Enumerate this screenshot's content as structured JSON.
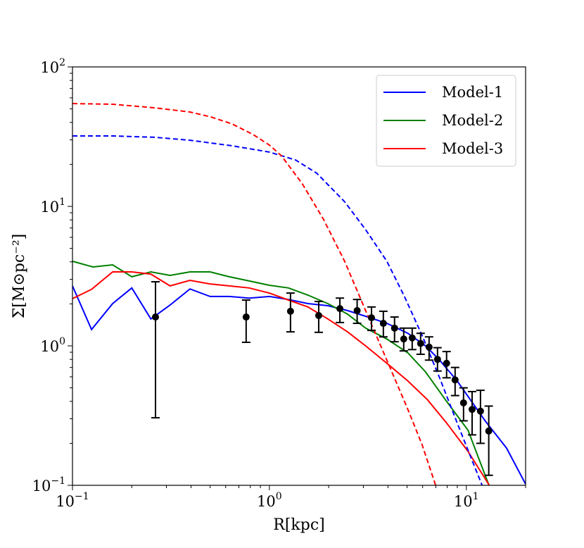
{
  "chart_data": {
    "type": "line",
    "xlabel": "R[kpc]",
    "ylabel": "Σ[M⊙pc⁻²]",
    "ylabel_parts": {
      "main": "Σ[M",
      "sub": "⊙",
      "mid": "pc",
      "sup": "−2",
      "end": "]"
    },
    "xscale": "log",
    "yscale": "log",
    "xlim": [
      0.1,
      20
    ],
    "ylim": [
      0.1,
      100
    ],
    "grid": false,
    "legend_placement": "top-right",
    "x_ticks": [
      {
        "value": 0.1,
        "base": "10",
        "exp": "−1"
      },
      {
        "value": 1,
        "base": "10",
        "exp": "0"
      },
      {
        "value": 10,
        "base": "10",
        "exp": "1"
      }
    ],
    "y_ticks": [
      {
        "value": 0.1,
        "base": "10",
        "exp": "−1"
      },
      {
        "value": 1,
        "base": "10",
        "exp": "0"
      },
      {
        "value": 10,
        "base": "10",
        "exp": "1"
      },
      {
        "value": 100,
        "base": "10",
        "exp": "2"
      }
    ],
    "series": [
      {
        "name": "Model-1",
        "color": "#0000ff",
        "style": "solid",
        "x": [
          0.1,
          0.125,
          0.16,
          0.2,
          0.25,
          0.313,
          0.395,
          0.5,
          0.625,
          0.79,
          1,
          1.25,
          1.57,
          1.98,
          2.49,
          3.08,
          3.95,
          5.05,
          6.21,
          7.32,
          8.99,
          12.5,
          16.0,
          20
        ],
        "y": [
          2.69,
          1.31,
          2.01,
          2.6,
          1.56,
          1.96,
          2.56,
          2.26,
          2.26,
          2.2,
          2.26,
          2.15,
          2.01,
          1.94,
          1.79,
          1.63,
          1.45,
          1.23,
          1.0,
          0.79,
          0.56,
          0.288,
          0.185,
          0.102
        ]
      },
      {
        "name": "Model-2",
        "color": "#008000",
        "style": "solid",
        "x": [
          0.1,
          0.127,
          0.16,
          0.2,
          0.25,
          0.313,
          0.395,
          0.5,
          0.625,
          0.79,
          1,
          1.25,
          1.57,
          1.98,
          2.49,
          3.08,
          3.95,
          5.05,
          6.21,
          7.94,
          10.2,
          13.1
        ],
        "y": [
          4.04,
          3.68,
          3.81,
          3.13,
          3.39,
          3.2,
          3.39,
          3.39,
          3.13,
          2.92,
          2.72,
          2.6,
          2.31,
          2.01,
          1.69,
          1.34,
          1.12,
          0.89,
          0.65,
          0.4,
          0.248,
          0.098
        ]
      },
      {
        "name": "Model-3",
        "color": "#ff0000",
        "style": "solid",
        "x": [
          0.1,
          0.125,
          0.16,
          0.2,
          0.25,
          0.313,
          0.395,
          0.5,
          0.625,
          0.79,
          1,
          1.25,
          1.57,
          1.98,
          2.49,
          3.08,
          3.95,
          5.05,
          6.36,
          7.94,
          10.2,
          13.2
        ],
        "y": [
          2.18,
          2.54,
          3.39,
          3.39,
          3.27,
          2.69,
          2.95,
          2.78,
          2.69,
          2.6,
          2.39,
          2.13,
          1.9,
          1.56,
          1.26,
          1.0,
          0.75,
          0.56,
          0.41,
          0.28,
          0.175,
          0.098
        ]
      },
      {
        "color": "#0000ff",
        "style": "dashed",
        "x": [
          0.1,
          0.16,
          0.262,
          0.395,
          0.647,
          1,
          1.36,
          1.74,
          2.41,
          3.08,
          3.95,
          4.85,
          5.96,
          7.32,
          8.99,
          10.6,
          12.1
        ],
        "y": [
          32.0,
          32.0,
          31.3,
          29.8,
          27.2,
          24.5,
          21.5,
          17.3,
          10.8,
          6.81,
          4.04,
          2.26,
          1.19,
          0.59,
          0.28,
          0.156,
          0.098
        ]
      },
      {
        "color": "#ff0000",
        "style": "dashed",
        "x": [
          0.1,
          0.16,
          0.262,
          0.395,
          0.505,
          0.647,
          0.828,
          1,
          1.15,
          1.47,
          1.88,
          2.41,
          3.08,
          3.95,
          5.05,
          5.96,
          7.02
        ],
        "y": [
          54.6,
          54.0,
          50.9,
          47.5,
          43.8,
          39.0,
          32.7,
          27.5,
          23.1,
          14.5,
          8.1,
          4.04,
          1.79,
          0.79,
          0.35,
          0.196,
          0.098
        ]
      }
    ],
    "observed": {
      "color": "#000000",
      "x": [
        0.264,
        0.762,
        1.28,
        1.78,
        2.28,
        2.79,
        3.3,
        3.79,
        4.32,
        4.81,
        5.31,
        5.86,
        6.47,
        7.14,
        7.94,
        8.77,
        9.68,
        10.7,
        11.8,
        13.0
      ],
      "y": [
        1.61,
        1.61,
        1.77,
        1.65,
        1.85,
        1.79,
        1.59,
        1.45,
        1.34,
        1.12,
        1.14,
        1.04,
        0.98,
        0.8,
        0.75,
        0.57,
        0.39,
        0.35,
        0.34,
        0.245
      ],
      "y_upper": [
        2.88,
        2.13,
        2.39,
        2.08,
        2.2,
        2.15,
        1.9,
        1.77,
        1.61,
        1.34,
        1.34,
        1.23,
        1.16,
        0.97,
        0.91,
        0.7,
        0.5,
        0.47,
        0.48,
        0.37
      ],
      "y_lower": [
        0.305,
        1.06,
        1.26,
        1.25,
        1.47,
        1.45,
        1.29,
        1.16,
        1.07,
        0.92,
        0.94,
        0.87,
        0.79,
        0.66,
        0.59,
        0.44,
        0.29,
        0.23,
        0.2,
        0.118
      ]
    }
  }
}
